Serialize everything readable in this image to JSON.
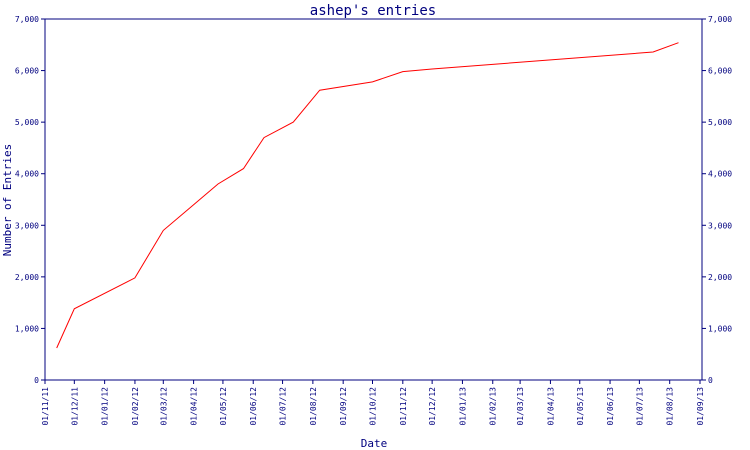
{
  "chart_data": {
    "type": "line",
    "title": "ashep's entries",
    "xlabel": "Date",
    "ylabel": "Number of Entries",
    "ylim": [
      0,
      7000
    ],
    "y_ticks": [
      "0",
      "1,000",
      "2,000",
      "3,000",
      "4,000",
      "5,000",
      "6,000",
      "7,000"
    ],
    "x_ticks": [
      "01/11/11",
      "01/12/11",
      "01/01/12",
      "01/02/12",
      "01/03/12",
      "01/04/12",
      "01/05/12",
      "01/06/12",
      "01/07/12",
      "01/08/12",
      "01/09/12",
      "01/10/12",
      "01/11/12",
      "01/12/12",
      "01/01/13",
      "01/02/13",
      "01/03/13",
      "01/04/13",
      "01/05/13",
      "01/06/13",
      "01/07/13",
      "01/08/13",
      "01/09/13"
    ],
    "grid": false,
    "series": [
      {
        "color": "#ff0000",
        "points": [
          [
            "2011-11-13",
            620
          ],
          [
            "2011-12-01",
            1380
          ],
          [
            "2012-02-01",
            1980
          ],
          [
            "2012-03-01",
            2900
          ],
          [
            "2012-04-01",
            3400
          ],
          [
            "2012-04-26",
            3800
          ],
          [
            "2012-05-22",
            4100
          ],
          [
            "2012-06-12",
            4700
          ],
          [
            "2012-07-12",
            5000
          ],
          [
            "2012-08-08",
            5620
          ],
          [
            "2012-10-01",
            5780
          ],
          [
            "2012-11-01",
            5980
          ],
          [
            "2012-12-01",
            6030
          ],
          [
            "2013-07-15",
            6360
          ],
          [
            "2013-08-10",
            6540
          ]
        ]
      }
    ]
  },
  "colors": {
    "axis": "#00007f",
    "line": "#ff0000",
    "background": "#ffffff"
  }
}
